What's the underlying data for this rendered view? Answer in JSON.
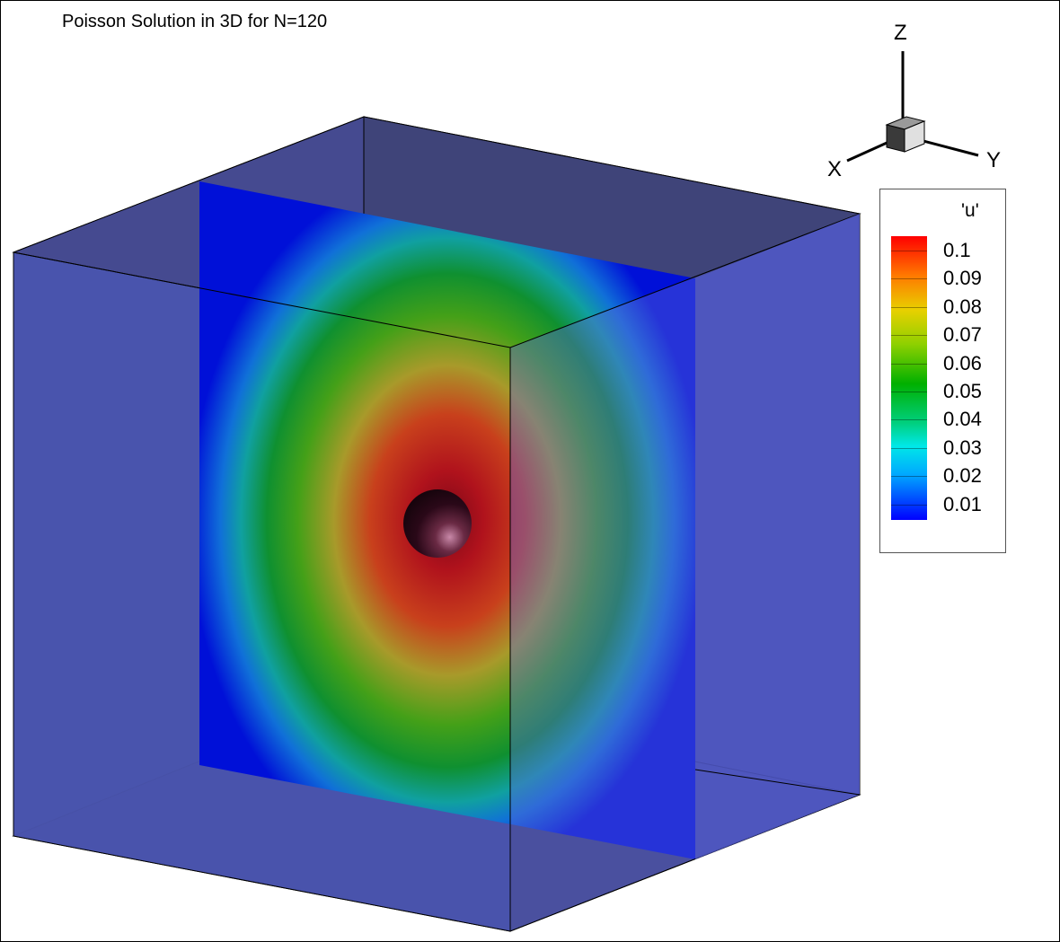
{
  "title": "Poisson Solution in 3D for N=120",
  "axes": {
    "x_label": "X",
    "y_label": "Y",
    "z_label": "Z"
  },
  "legend": {
    "variable": "'u'",
    "levels": [
      "0.1",
      "0.09",
      "0.08",
      "0.07",
      "0.06",
      "0.05",
      "0.04",
      "0.03",
      "0.02",
      "0.01"
    ],
    "colors": [
      "#ff0000",
      "#0000ff"
    ]
  }
}
